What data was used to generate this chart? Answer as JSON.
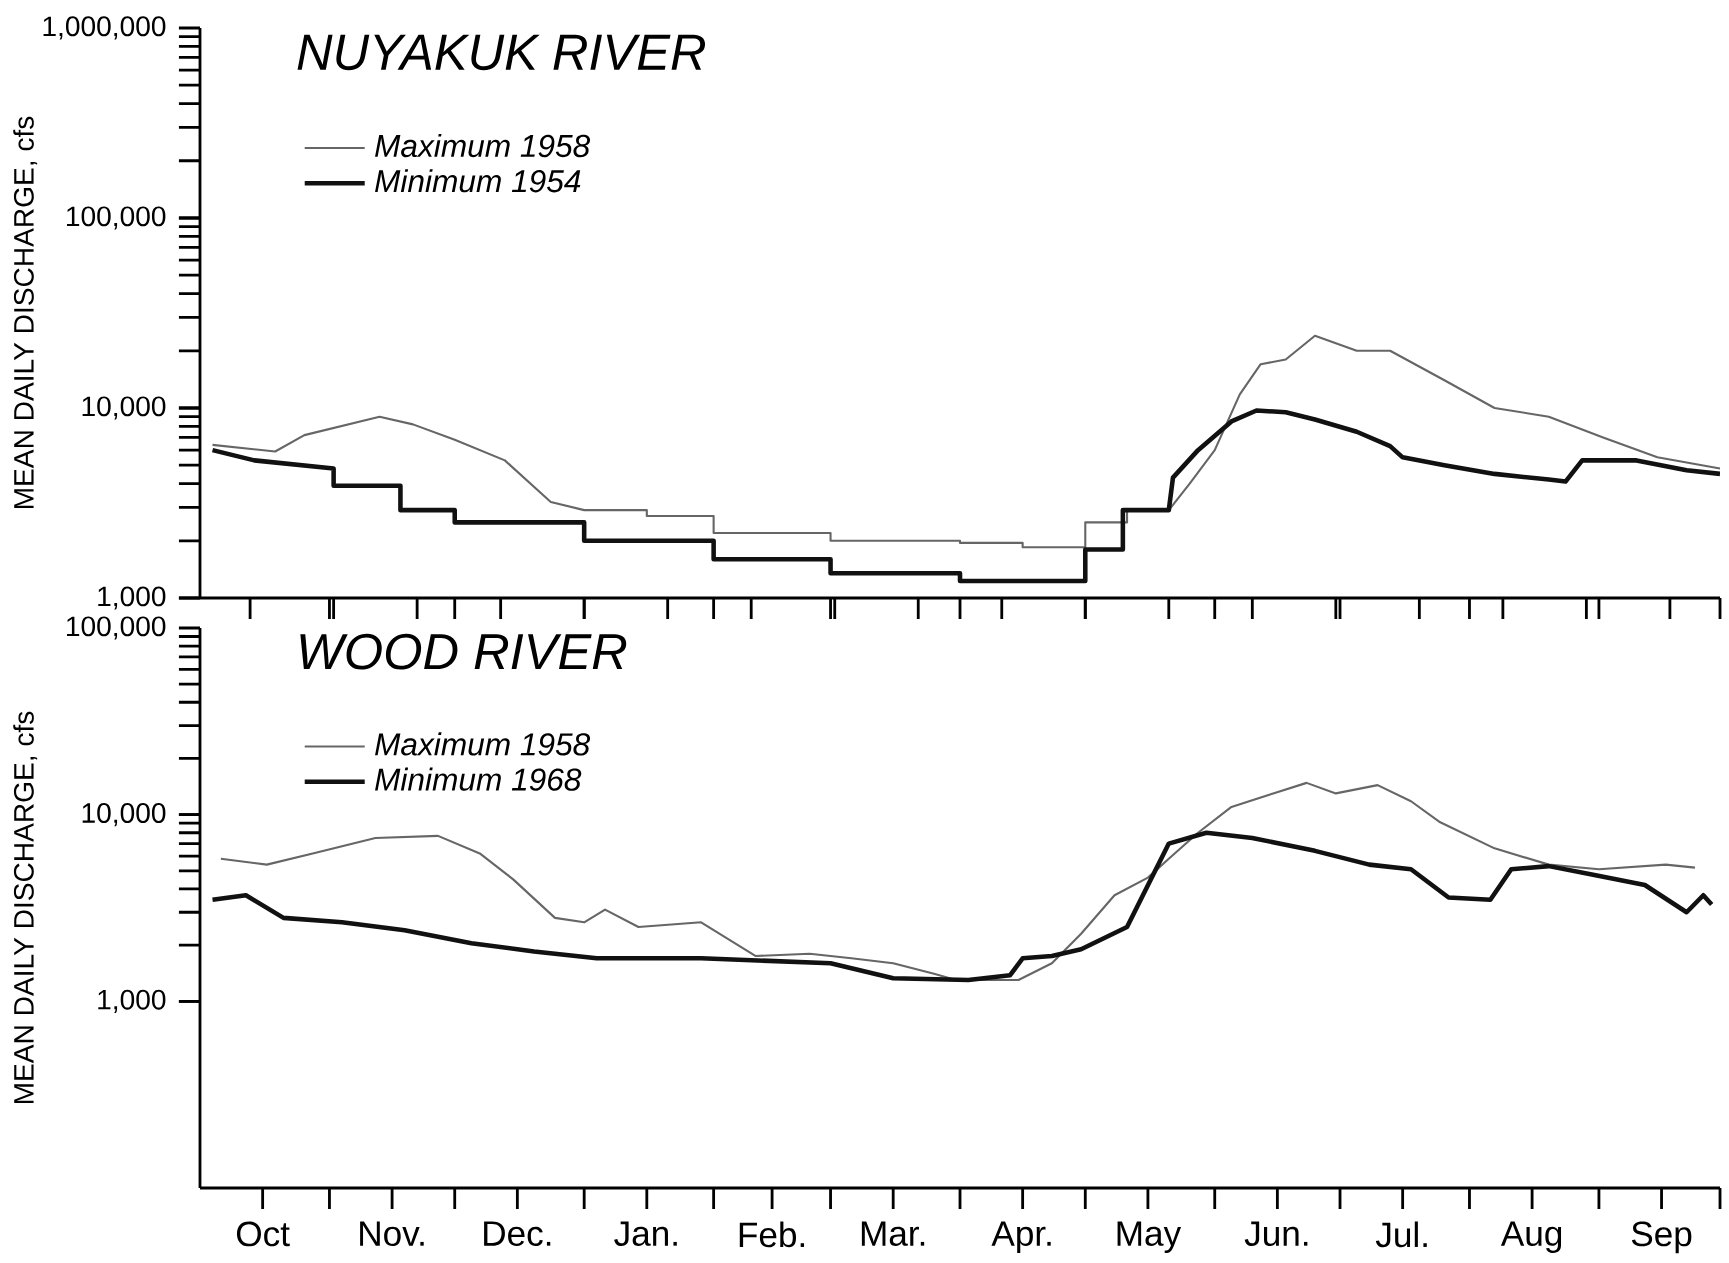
{
  "chart_data": [
    {
      "type": "line",
      "title": "NUYAKUK RIVER",
      "ylabel": "MEAN DAILY DISCHARGE, cfs",
      "log": true,
      "legend": "top left",
      "tick_labels": "y",
      "xlim": [
        "1957-10-01",
        "1958-09-30"
      ],
      "ylim": [
        1000,
        1000000
      ],
      "yticks": [
        {
          "value": 1000,
          "label": "1,000"
        },
        {
          "value": 10000,
          "label": "10,000"
        },
        {
          "value": 100000,
          "label": "100,000"
        },
        {
          "value": 1000000,
          "label": "1,000,000"
        }
      ],
      "series": [
        {
          "name": "Maximum 1958",
          "color": "#666666",
          "x": [
            "1957-10-04",
            "1957-10-19",
            "1957-10-26",
            "1957-11-13",
            "1957-11-21",
            "1957-12-01",
            "1957-12-13",
            "1957-12-24",
            "1958-01-01",
            "1958-01-16",
            "1958-01-16",
            "1958-02-01",
            "1958-02-01",
            "1958-03-01",
            "1958-03-01",
            "1958-04-01",
            "1958-04-01",
            "1958-04-16",
            "1958-04-16",
            "1958-05-01",
            "1958-05-01",
            "1958-05-11",
            "1958-05-11",
            "1958-05-21",
            "1958-05-26",
            "1958-06-01",
            "1958-06-07",
            "1958-06-12",
            "1958-06-18",
            "1958-06-25",
            "1958-07-05",
            "1958-07-13",
            "1958-07-26",
            "1958-08-07",
            "1958-08-20",
            "1958-09-02",
            "1958-09-15",
            "1958-09-30"
          ],
          "values": [
            6400,
            5900,
            7200,
            9000,
            8200,
            6800,
            5300,
            3200,
            2900,
            2900,
            2700,
            2700,
            2200,
            2200,
            2000,
            2000,
            1950,
            1950,
            1850,
            1850,
            2500,
            2500,
            2900,
            2900,
            4000,
            6000,
            11800,
            17000,
            18000,
            24000,
            20000,
            20000,
            14000,
            10000,
            9000,
            7000,
            5500,
            4800
          ]
        },
        {
          "name": "Minimum 1954",
          "color": "#111111",
          "x": [
            "1957-10-04",
            "1957-10-14",
            "1957-11-02",
            "1957-11-02",
            "1957-11-18",
            "1957-11-18",
            "1957-12-01",
            "1957-12-01",
            "1958-01-01",
            "1958-01-01",
            "1958-02-01",
            "1958-02-01",
            "1958-03-01",
            "1958-03-01",
            "1958-04-01",
            "1958-04-01",
            "1958-05-01",
            "1958-05-01",
            "1958-05-10",
            "1958-05-10",
            "1958-05-21",
            "1958-05-22",
            "1958-05-28",
            "1958-06-05",
            "1958-06-11",
            "1958-06-18",
            "1958-06-25",
            "1958-07-05",
            "1958-07-13",
            "1958-07-16",
            "1958-07-26",
            "1958-08-07",
            "1958-08-20",
            "1958-08-24",
            "1958-08-28",
            "1958-09-10",
            "1958-09-22",
            "1958-09-30"
          ],
          "values": [
            6000,
            5300,
            4800,
            3900,
            3900,
            2900,
            2900,
            2500,
            2500,
            2000,
            2000,
            1600,
            1600,
            1350,
            1350,
            1230,
            1230,
            1800,
            1800,
            2900,
            2900,
            4300,
            6000,
            8500,
            9700,
            9500,
            8700,
            7500,
            6300,
            5500,
            5000,
            4500,
            4200,
            4100,
            5300,
            5300,
            4700,
            4500
          ]
        }
      ]
    },
    {
      "type": "line",
      "title": "WOOD RIVER",
      "ylabel": "MEAN DAILY DISCHARGE, cfs",
      "log": true,
      "legend": "top left",
      "xlim": [
        "1957-10-01",
        "1958-09-30"
      ],
      "ylim": [
        100,
        100000
      ],
      "xticks": [
        {
          "value": "1957-10-16",
          "label": "Oct"
        },
        {
          "value": "1957-11-16",
          "label": "Nov."
        },
        {
          "value": "1957-12-16",
          "label": "Dec."
        },
        {
          "value": "1958-01-16",
          "label": "Jan."
        },
        {
          "value": "1958-02-15",
          "label": "Feb."
        },
        {
          "value": "1958-03-16",
          "label": "Mar."
        },
        {
          "value": "1958-04-16",
          "label": "Apr."
        },
        {
          "value": "1958-05-16",
          "label": "May"
        },
        {
          "value": "1958-06-16",
          "label": "Jun."
        },
        {
          "value": "1958-07-16",
          "label": "Jul."
        },
        {
          "value": "1958-08-16",
          "label": "Aug"
        },
        {
          "value": "1958-09-16",
          "label": "Sep"
        }
      ],
      "yticks": [
        {
          "value": 1000,
          "label": "1,000"
        },
        {
          "value": 10000,
          "label": "10,000"
        },
        {
          "value": 100000,
          "label": "100,000"
        }
      ],
      "series": [
        {
          "name": "Maximum 1958",
          "color": "#666666",
          "x": [
            "1957-10-06",
            "1957-10-17",
            "1957-10-28",
            "1957-11-12",
            "1957-11-27",
            "1957-12-07",
            "1957-12-15",
            "1957-12-25",
            "1958-01-01",
            "1958-01-06",
            "1958-01-14",
            "1958-01-29",
            "1958-02-11",
            "1958-02-24",
            "1958-03-06",
            "1958-03-16",
            "1958-03-26",
            "1958-03-31",
            "1958-04-15",
            "1958-04-23",
            "1958-04-30",
            "1958-05-08",
            "1958-05-16",
            "1958-05-21",
            "1958-05-28",
            "1958-06-05",
            "1958-06-15",
            "1958-06-23",
            "1958-06-30",
            "1958-07-10",
            "1958-07-18",
            "1958-07-25",
            "1958-08-07",
            "1958-08-20",
            "1958-09-01",
            "1958-09-17",
            "1958-09-24"
          ],
          "values": [
            5800,
            5400,
            6200,
            7500,
            7700,
            6200,
            4500,
            2800,
            2650,
            3100,
            2500,
            2650,
            1750,
            1800,
            1700,
            1600,
            1400,
            1300,
            1300,
            1600,
            2300,
            3700,
            4600,
            5800,
            8000,
            11000,
            13000,
            14800,
            13000,
            14400,
            11800,
            9100,
            6600,
            5400,
            5100,
            5400,
            5200
          ]
        },
        {
          "name": "Minimum 1968",
          "color": "#111111",
          "x": [
            "1957-10-04",
            "1957-10-12",
            "1957-10-21",
            "1957-11-04",
            "1957-11-19",
            "1957-12-05",
            "1957-12-20",
            "1958-01-04",
            "1958-01-29",
            "1958-03-01",
            "1958-03-16",
            "1958-04-03",
            "1958-04-13",
            "1958-04-16",
            "1958-04-23",
            "1958-04-30",
            "1958-05-11",
            "1958-05-21",
            "1958-05-30",
            "1958-06-10",
            "1958-06-25",
            "1958-07-08",
            "1958-07-18",
            "1958-07-27",
            "1958-08-06",
            "1958-08-11",
            "1958-08-20",
            "1958-08-30",
            "1958-09-12",
            "1958-09-22",
            "1958-09-26",
            "1958-09-28"
          ],
          "values": [
            3500,
            3700,
            2800,
            2650,
            2400,
            2050,
            1850,
            1700,
            1700,
            1600,
            1330,
            1300,
            1380,
            1700,
            1750,
            1900,
            2500,
            7000,
            8000,
            7500,
            6400,
            5400,
            5100,
            3600,
            3500,
            5100,
            5300,
            4800,
            4200,
            3000,
            3700,
            3300
          ]
        }
      ]
    }
  ]
}
